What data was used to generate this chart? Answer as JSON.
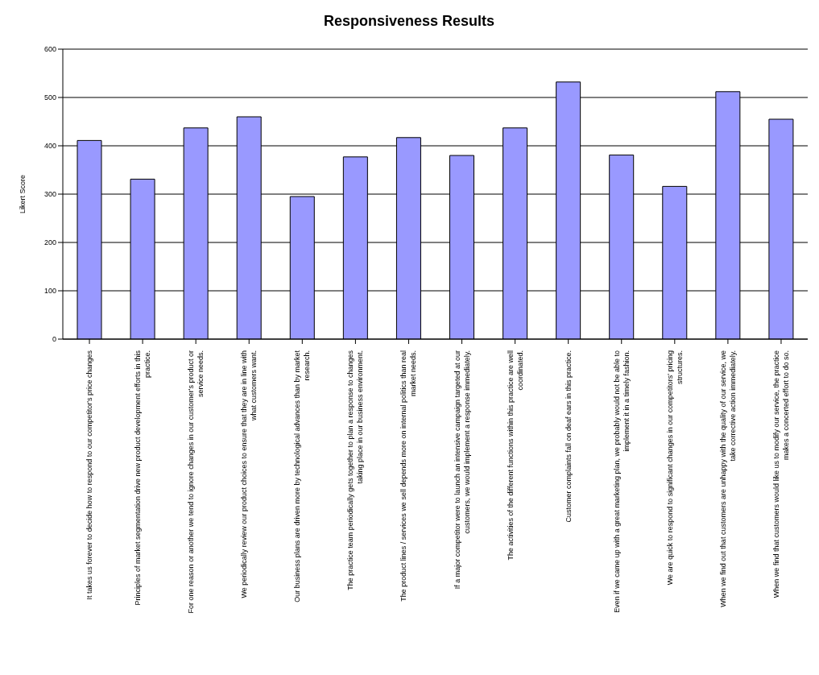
{
  "chart_data": {
    "type": "bar",
    "title": "Responsiveness Results",
    "ylabel": "Likert Score",
    "categories": [
      "It takes us forever to decide how to respond to our competitor's price changes",
      "Principles of market segmentation drive new product development efforts in this practice.",
      "For one reason or another we tend to ignore changes in our customer's product or service needs.",
      "We periodically review our product choices to ensure that they are in line with what customers want.",
      "Our business plans are driven more by technological advances than by market research.",
      "The practice team periodically gets together to plan a response to changes taking place in our business environment.",
      "The product lines / services we sell depends more on internal politics than real market needs.",
      "If a major competitor were to launch an intensive campaign targeted at our customers, we would implement a response immediately.",
      "The activities of the different functions within this practice are well coordinated.",
      "Customer complaints fall on deaf ears in this practice.",
      "Even if we came up with a great marketing plan, we probably would not be able to implement it in a timely fashion.",
      "We are quick to respond to significant changes in our competitors' pricing structures.",
      "When we find out that customers are unhappy with the quality of our service, we take corrective action immediately.",
      "When we find that customers would like us to modify our service, the practice makes a concerted effort to do so."
    ],
    "values": [
      411,
      331,
      437,
      460,
      295,
      377,
      417,
      380,
      437,
      532,
      381,
      316,
      512,
      455
    ],
    "color": "#9999ff",
    "ylim": [
      0,
      600
    ],
    "yticks": [
      0,
      100,
      200,
      300,
      400,
      500,
      600
    ],
    "grid": "y"
  }
}
